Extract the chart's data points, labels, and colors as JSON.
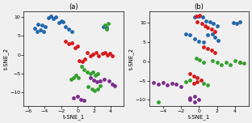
{
  "title_a": "(a)",
  "title_b": "(b)",
  "xlabel": "t-SNE_1",
  "ylabel": "t-SNE_2",
  "colors": [
    "#2166ac",
    "#d6191b",
    "#33a02c",
    "#7b2d8b"
  ],
  "marker_size": 12,
  "figsize": [
    3.12,
    1.52
  ],
  "dpi": 100,
  "bg_color": "#f0f0f0",
  "plot_a": {
    "blue": [
      [
        -5.2,
        7.0
      ],
      [
        -4.9,
        6.2
      ],
      [
        -4.5,
        6.5
      ],
      [
        -4.1,
        6.2
      ],
      [
        -4.8,
        8.0
      ],
      [
        -4.3,
        7.8
      ],
      [
        -3.9,
        7.5
      ],
      [
        -3.5,
        9.8
      ],
      [
        -3.2,
        10.2
      ],
      [
        -2.9,
        9.5
      ],
      [
        -2.6,
        10.0
      ],
      [
        -2.3,
        8.5
      ],
      [
        -2.0,
        9.0
      ],
      [
        -1.8,
        8.8
      ],
      [
        -1.5,
        7.5
      ],
      [
        -1.1,
        6.8
      ],
      [
        -0.7,
        6.2
      ],
      [
        3.1,
        7.5
      ],
      [
        3.5,
        7.2
      ]
    ],
    "red": [
      [
        -1.5,
        3.5
      ],
      [
        -1.1,
        3.0
      ],
      [
        -0.7,
        3.2
      ],
      [
        -0.3,
        1.8
      ],
      [
        0.0,
        2.2
      ],
      [
        0.2,
        -1.5
      ],
      [
        0.6,
        -1.8
      ],
      [
        0.9,
        -1.2
      ],
      [
        1.2,
        0.5
      ],
      [
        1.5,
        -0.3
      ],
      [
        1.8,
        0.2
      ],
      [
        2.2,
        0.5
      ],
      [
        2.5,
        -0.3
      ],
      [
        3.0,
        0.3
      ],
      [
        3.3,
        0.5
      ],
      [
        3.6,
        0.0
      ],
      [
        3.9,
        0.3
      ],
      [
        4.2,
        -0.2
      ]
    ],
    "green": [
      [
        3.3,
        7.8
      ],
      [
        3.7,
        8.2
      ],
      [
        3.5,
        6.8
      ],
      [
        0.5,
        -3.2
      ],
      [
        0.8,
        -4.0
      ],
      [
        1.2,
        -4.5
      ],
      [
        1.5,
        -5.0
      ],
      [
        1.8,
        -4.5
      ],
      [
        2.1,
        -5.5
      ],
      [
        2.4,
        -5.0
      ],
      [
        -0.8,
        -6.5
      ],
      [
        -0.5,
        -6.0
      ],
      [
        -0.2,
        -5.5
      ],
      [
        0.1,
        -6.2
      ],
      [
        1.3,
        -8.5
      ],
      [
        1.7,
        -9.0
      ],
      [
        2.0,
        -9.5
      ],
      [
        2.4,
        -9.0
      ],
      [
        2.7,
        -8.2
      ]
    ],
    "purple": [
      [
        1.5,
        -6.2
      ],
      [
        1.9,
        -6.8
      ],
      [
        2.3,
        -7.2
      ],
      [
        2.7,
        -7.0
      ],
      [
        3.2,
        -6.5
      ],
      [
        3.8,
        -7.0
      ],
      [
        4.2,
        -7.8
      ],
      [
        4.5,
        -8.2
      ],
      [
        -0.5,
        -11.5
      ],
      [
        0.0,
        -11.0
      ],
      [
        0.4,
        -11.8
      ],
      [
        0.8,
        -12.2
      ]
    ]
  },
  "plot_b": {
    "blue": [
      [
        -0.5,
        11.5
      ],
      [
        0.0,
        11.8
      ],
      [
        0.4,
        11.5
      ],
      [
        0.8,
        10.5
      ],
      [
        1.2,
        10.2
      ],
      [
        1.6,
        9.8
      ],
      [
        2.0,
        9.2
      ],
      [
        3.8,
        10.0
      ],
      [
        4.2,
        9.8
      ],
      [
        4.5,
        10.3
      ],
      [
        -1.5,
        7.2
      ],
      [
        -1.0,
        6.8
      ],
      [
        -0.5,
        5.8
      ],
      [
        0.0,
        5.3
      ],
      [
        0.5,
        5.0
      ],
      [
        1.0,
        6.8
      ],
      [
        1.5,
        7.2
      ],
      [
        1.8,
        6.2
      ],
      [
        2.1,
        5.5
      ]
    ],
    "red": [
      [
        -0.3,
        11.8
      ],
      [
        0.1,
        12.0
      ],
      [
        -0.2,
        10.2
      ],
      [
        0.3,
        9.8
      ],
      [
        0.7,
        9.2
      ],
      [
        1.0,
        8.8
      ],
      [
        1.4,
        8.3
      ],
      [
        1.8,
        7.8
      ],
      [
        0.5,
        3.8
      ],
      [
        1.0,
        3.3
      ],
      [
        1.4,
        2.8
      ],
      [
        1.8,
        2.3
      ],
      [
        -1.0,
        -3.2
      ],
      [
        -0.6,
        -3.8
      ],
      [
        -0.2,
        -4.3
      ],
      [
        0.2,
        -4.8
      ],
      [
        -0.2,
        -5.3
      ],
      [
        -0.6,
        -5.8
      ],
      [
        4.5,
        -0.3
      ]
    ],
    "green": [
      [
        -0.3,
        0.8
      ],
      [
        0.1,
        0.3
      ],
      [
        0.5,
        -0.3
      ],
      [
        1.5,
        0.2
      ],
      [
        2.0,
        -0.3
      ],
      [
        2.5,
        -0.8
      ],
      [
        3.0,
        -0.3
      ],
      [
        3.5,
        -0.8
      ],
      [
        4.0,
        0.2
      ],
      [
        4.5,
        -0.3
      ],
      [
        5.0,
        -0.5
      ],
      [
        -1.0,
        -4.8
      ],
      [
        -1.5,
        -5.3
      ],
      [
        0.5,
        -5.8
      ],
      [
        1.0,
        -6.2
      ],
      [
        -4.5,
        -10.5
      ]
    ],
    "purple": [
      [
        -5.0,
        -5.5
      ],
      [
        -4.5,
        -6.0
      ],
      [
        -4.0,
        -5.5
      ],
      [
        -3.5,
        -6.2
      ],
      [
        -3.0,
        -5.8
      ],
      [
        -2.5,
        -6.0
      ],
      [
        -2.0,
        -6.5
      ],
      [
        -1.0,
        -9.5
      ],
      [
        -0.5,
        -9.0
      ],
      [
        0.0,
        -10.0
      ],
      [
        -0.5,
        -10.5
      ],
      [
        -1.0,
        -10.0
      ]
    ]
  },
  "xlim_a": [
    -6.5,
    5.5
  ],
  "ylim_a": [
    -13.5,
    11.5
  ],
  "xlim_b": [
    -5.5,
    5.5
  ],
  "ylim_b": [
    -11.5,
    13.0
  ],
  "xticks_a": [
    -6,
    -4,
    -2,
    0,
    2,
    4
  ],
  "yticks_a": [
    -10,
    -5,
    0,
    5,
    10
  ],
  "xticks_b": [
    -4,
    -2,
    0,
    2,
    4
  ],
  "yticks_b": [
    -10,
    -5,
    0,
    5,
    10
  ]
}
